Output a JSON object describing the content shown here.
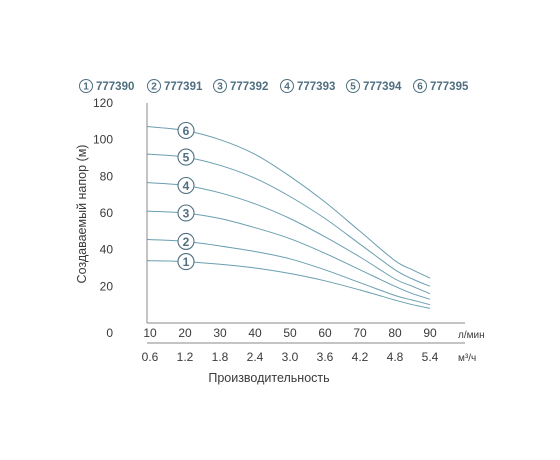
{
  "chart_data": {
    "type": "line",
    "legend": [
      {
        "number": "1",
        "model": "777390"
      },
      {
        "number": "2",
        "model": "777391"
      },
      {
        "number": "3",
        "model": "777392"
      },
      {
        "number": "4",
        "model": "777393"
      },
      {
        "number": "5",
        "model": "777394"
      },
      {
        "number": "6",
        "model": "777395"
      }
    ],
    "ylabel": "Создаваемый напор (м)",
    "xlabel": "Производительность",
    "x_unit": "л/мин",
    "x2_unit": "м³/ч",
    "ylim": [
      0,
      120
    ],
    "xlim": [
      0,
      90
    ],
    "y_ticks": [
      "20",
      "40",
      "60",
      "80",
      "100",
      "120"
    ],
    "y_origin": "0",
    "x_ticks": [
      "10",
      "20",
      "30",
      "40",
      "50",
      "60",
      "70",
      "80",
      "90"
    ],
    "x_tick_values": [
      10,
      20,
      30,
      40,
      50,
      60,
      70,
      80,
      90
    ],
    "x2_ticks": [
      "0.6",
      "1.2",
      "1.8",
      "2.4",
      "3.0",
      "3.6",
      "4.2",
      "4.8",
      "5.4"
    ],
    "x": [
      0,
      10,
      20,
      30,
      40,
      50,
      60,
      70,
      80,
      85,
      90
    ],
    "series": [
      {
        "label": "1",
        "values": [
          34,
          34,
          33.5,
          32,
          30,
          27,
          23,
          18,
          12.5,
          10,
          8
        ]
      },
      {
        "label": "2",
        "values": [
          45.5,
          45.5,
          44.5,
          42,
          39,
          35,
          29,
          22,
          15,
          12.5,
          10
        ]
      },
      {
        "label": "3",
        "values": [
          61,
          61,
          60,
          57,
          52,
          46,
          38,
          29,
          20,
          16,
          13
        ]
      },
      {
        "label": "4",
        "values": [
          76.5,
          76.5,
          75,
          71,
          65,
          57,
          47,
          36,
          24,
          20,
          16
        ]
      },
      {
        "label": "5",
        "values": [
          92,
          92,
          90.5,
          86,
          79,
          69,
          57,
          43,
          29,
          24,
          20
        ]
      },
      {
        "label": "6",
        "values": [
          107,
          107,
          105,
          100,
          92,
          80,
          66,
          50,
          34,
          29,
          24.5
        ]
      }
    ],
    "colors": {
      "curve": "#6a9fb0",
      "badge": "#4f6f80",
      "axis": "#888888"
    }
  }
}
